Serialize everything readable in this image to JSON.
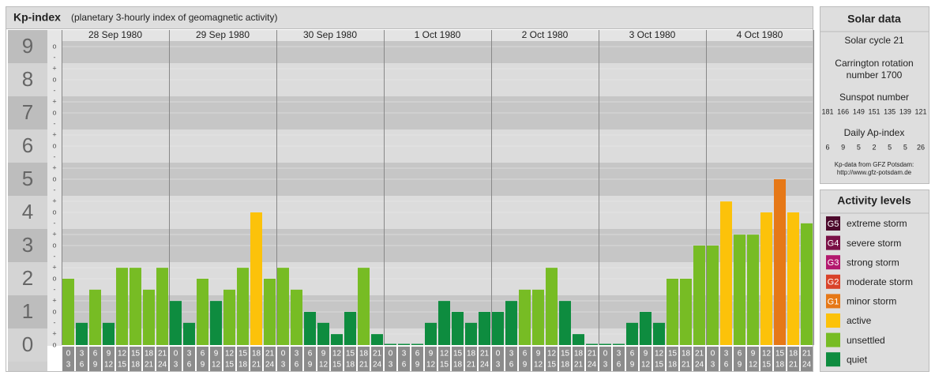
{
  "chart_data": {
    "type": "bar",
    "title": "Kp-index",
    "subtitle": "(planetary 3-hourly index of geomagnetic activity)",
    "ylim": [
      0,
      9
    ],
    "yticks": [
      0,
      1,
      2,
      3,
      4,
      5,
      6,
      7,
      8,
      9
    ],
    "minor_labels": [
      "o",
      "+",
      "-"
    ],
    "hours": [
      {
        "from": "0",
        "to": "3"
      },
      {
        "from": "3",
        "to": "6"
      },
      {
        "from": "6",
        "to": "9"
      },
      {
        "from": "9",
        "to": "12"
      },
      {
        "from": "12",
        "to": "15"
      },
      {
        "from": "15",
        "to": "18"
      },
      {
        "from": "18",
        "to": "21"
      },
      {
        "from": "21",
        "to": "24"
      }
    ],
    "days": [
      {
        "label": "28 Sep 1980",
        "values": [
          2,
          0.67,
          1.67,
          0.67,
          2.33,
          2.33,
          1.67,
          2.33
        ],
        "colors": [
          "#77bc24",
          "#0e8c3f",
          "#77bc24",
          "#0e8c3f",
          "#77bc24",
          "#77bc24",
          "#77bc24",
          "#77bc24"
        ]
      },
      {
        "label": "29 Sep 1980",
        "values": [
          1.33,
          0.67,
          2,
          1.33,
          1.67,
          2.33,
          4,
          2
        ],
        "colors": [
          "#0e8c3f",
          "#0e8c3f",
          "#77bc24",
          "#0e8c3f",
          "#77bc24",
          "#77bc24",
          "#fcc20a",
          "#77bc24"
        ]
      },
      {
        "label": "30 Sep 1980",
        "values": [
          2.33,
          1.67,
          1,
          0.67,
          0.33,
          1,
          2.33,
          0.33
        ],
        "colors": [
          "#77bc24",
          "#77bc24",
          "#0e8c3f",
          "#0e8c3f",
          "#0e8c3f",
          "#0e8c3f",
          "#77bc24",
          "#0e8c3f"
        ]
      },
      {
        "label": "1 Oct 1980",
        "values": [
          0,
          0,
          0,
          0.67,
          1.33,
          1,
          0.67,
          1
        ],
        "colors": [
          "#0e8c3f",
          "#0e8c3f",
          "#0e8c3f",
          "#0e8c3f",
          "#0e8c3f",
          "#0e8c3f",
          "#0e8c3f",
          "#0e8c3f"
        ]
      },
      {
        "label": "2 Oct 1980",
        "values": [
          1,
          1.33,
          1.67,
          1.67,
          2.33,
          1.33,
          0.33,
          0
        ],
        "colors": [
          "#0e8c3f",
          "#0e8c3f",
          "#77bc24",
          "#77bc24",
          "#77bc24",
          "#0e8c3f",
          "#0e8c3f",
          "#0e8c3f"
        ]
      },
      {
        "label": "3 Oct 1980",
        "values": [
          0,
          0,
          0.67,
          1,
          0.67,
          2,
          2,
          3
        ],
        "colors": [
          "#0e8c3f",
          "#0e8c3f",
          "#0e8c3f",
          "#0e8c3f",
          "#0e8c3f",
          "#77bc24",
          "#77bc24",
          "#77bc24"
        ]
      },
      {
        "label": "4 Oct 1980",
        "values": [
          3,
          4.33,
          3.33,
          3.33,
          4,
          5,
          4,
          3.67
        ],
        "colors": [
          "#77bc24",
          "#fcc20a",
          "#77bc24",
          "#77bc24",
          "#fcc20a",
          "#e67817",
          "#fcc20a",
          "#77bc24"
        ]
      }
    ]
  },
  "solar": {
    "title": "Solar data",
    "cycle": "Solar cycle 21",
    "carrington_1": "Carrington rotation",
    "carrington_2": "number 1700",
    "sunspot_title": "Sunspot number",
    "sunspots": [
      181,
      166,
      149,
      151,
      135,
      139,
      121
    ],
    "ap_title": "Daily Ap-index",
    "ap": [
      6,
      9,
      5,
      2,
      5,
      5,
      26
    ],
    "credit_1": "Kp-data from GFZ Potsdam:",
    "credit_2": "http://www.gfz-potsdam.de"
  },
  "levels": {
    "title": "Activity levels",
    "items": [
      {
        "code": "G5",
        "label": "extreme storm",
        "color": "#4d0a2c"
      },
      {
        "code": "G4",
        "label": "severe storm",
        "color": "#7a1046"
      },
      {
        "code": "G3",
        "label": "strong storm",
        "color": "#b3186e"
      },
      {
        "code": "G2",
        "label": "moderate storm",
        "color": "#d9432a"
      },
      {
        "code": "G1",
        "label": "minor storm",
        "color": "#e67817"
      },
      {
        "label": "active",
        "color": "#fcc20a"
      },
      {
        "label": "unsettled",
        "color": "#77bc24"
      },
      {
        "label": "quiet",
        "color": "#0e8c3f"
      }
    ]
  }
}
